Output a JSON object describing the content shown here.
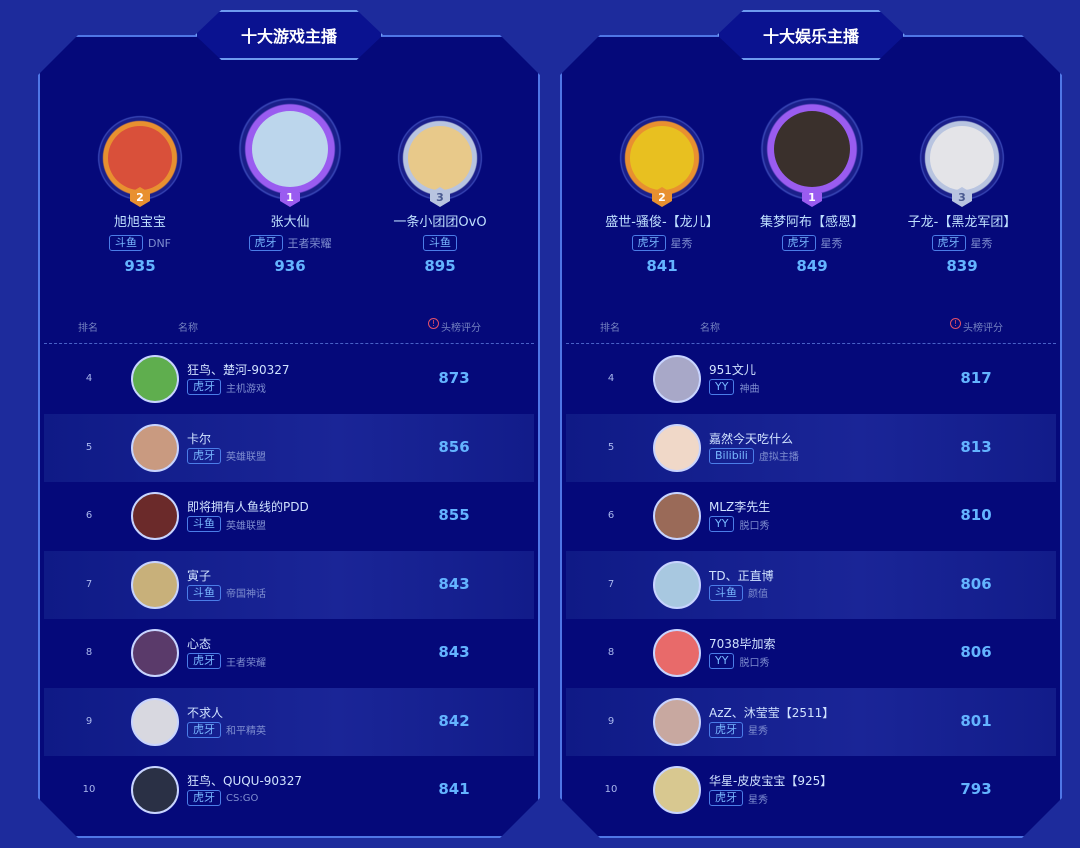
{
  "panels": [
    {
      "title": "十大游戏主播",
      "header": {
        "rank": "排名",
        "name": "名称",
        "score": "头榜评分"
      },
      "top3": [
        {
          "rank": "2",
          "name": "旭旭宝宝",
          "platform": "斗鱼",
          "category": "DNF",
          "score": "935",
          "color": "#d9503a"
        },
        {
          "rank": "1",
          "name": "张大仙",
          "platform": "虎牙",
          "category": "王者荣耀",
          "score": "936",
          "color": "#bcd6ec"
        },
        {
          "rank": "3",
          "name": "一条小团团OvO",
          "platform": "斗鱼",
          "category": "",
          "score": "895",
          "color": "#e8c98a"
        }
      ],
      "rows": [
        {
          "rank": "4",
          "name": "狂鸟、楚河-90327",
          "platform": "虎牙",
          "category": "主机游戏",
          "score": "873",
          "color": "#5fae4e"
        },
        {
          "rank": "5",
          "name": "卡尔",
          "platform": "虎牙",
          "category": "英雄联盟",
          "score": "856",
          "color": "#c99a80"
        },
        {
          "rank": "6",
          "name": "即将拥有人鱼线的PDD",
          "platform": "斗鱼",
          "category": "英雄联盟",
          "score": "855",
          "color": "#6b2a2a"
        },
        {
          "rank": "7",
          "name": "寅子",
          "platform": "斗鱼",
          "category": "帝国神话",
          "score": "843",
          "color": "#c8b07a"
        },
        {
          "rank": "8",
          "name": "心态",
          "platform": "虎牙",
          "category": "王者荣耀",
          "score": "843",
          "color": "#5a3a6a"
        },
        {
          "rank": "9",
          "name": "不求人",
          "platform": "虎牙",
          "category": "和平精英",
          "score": "842",
          "color": "#d8d8e0"
        },
        {
          "rank": "10",
          "name": "狂鸟、QUQU-90327",
          "platform": "虎牙",
          "category": "CS:GO",
          "score": "841",
          "color": "#2a3045"
        }
      ]
    },
    {
      "title": "十大娱乐主播",
      "header": {
        "rank": "排名",
        "name": "名称",
        "score": "头榜评分"
      },
      "top3": [
        {
          "rank": "2",
          "name": "盛世-骚俊-【龙儿】",
          "platform": "虎牙",
          "category": "星秀",
          "score": "841",
          "color": "#e8c020"
        },
        {
          "rank": "1",
          "name": "集梦阿布【感恩】",
          "platform": "虎牙",
          "category": "星秀",
          "score": "849",
          "color": "#3a302c"
        },
        {
          "rank": "3",
          "name": "子龙-【黑龙军团】",
          "platform": "虎牙",
          "category": "星秀",
          "score": "839",
          "color": "#e4e4e8"
        }
      ],
      "rows": [
        {
          "rank": "4",
          "name": "951文儿",
          "platform": "YY",
          "category": "神曲",
          "score": "817",
          "color": "#a8a8c8"
        },
        {
          "rank": "5",
          "name": "嘉然今天吃什么",
          "platform": "Bilibili",
          "category": "虚拟主播",
          "score": "813",
          "color": "#f0d8c8"
        },
        {
          "rank": "6",
          "name": "MLZ李先生",
          "platform": "YY",
          "category": "脱口秀",
          "score": "810",
          "color": "#9a6a58"
        },
        {
          "rank": "7",
          "name": "TD、正直博",
          "platform": "斗鱼",
          "category": "颜值",
          "score": "806",
          "color": "#a8c8e0"
        },
        {
          "rank": "8",
          "name": "7038毕加索",
          "platform": "YY",
          "category": "脱口秀",
          "score": "806",
          "color": "#e86a6a"
        },
        {
          "rank": "9",
          "name": "AzZ、沐莹莹【2511】",
          "platform": "虎牙",
          "category": "星秀",
          "score": "801",
          "color": "#c8a8a0"
        },
        {
          "rank": "10",
          "name": "华星-皮皮宝宝【925】",
          "platform": "虎牙",
          "category": "星秀",
          "score": "793",
          "color": "#d8c890"
        }
      ]
    }
  ],
  "medal_colors": {
    "1": "#9a5cf0",
    "2": "#e89030",
    "3": "#b8c4e0"
  },
  "icons": {
    "info": "exclamation-circle-icon"
  }
}
